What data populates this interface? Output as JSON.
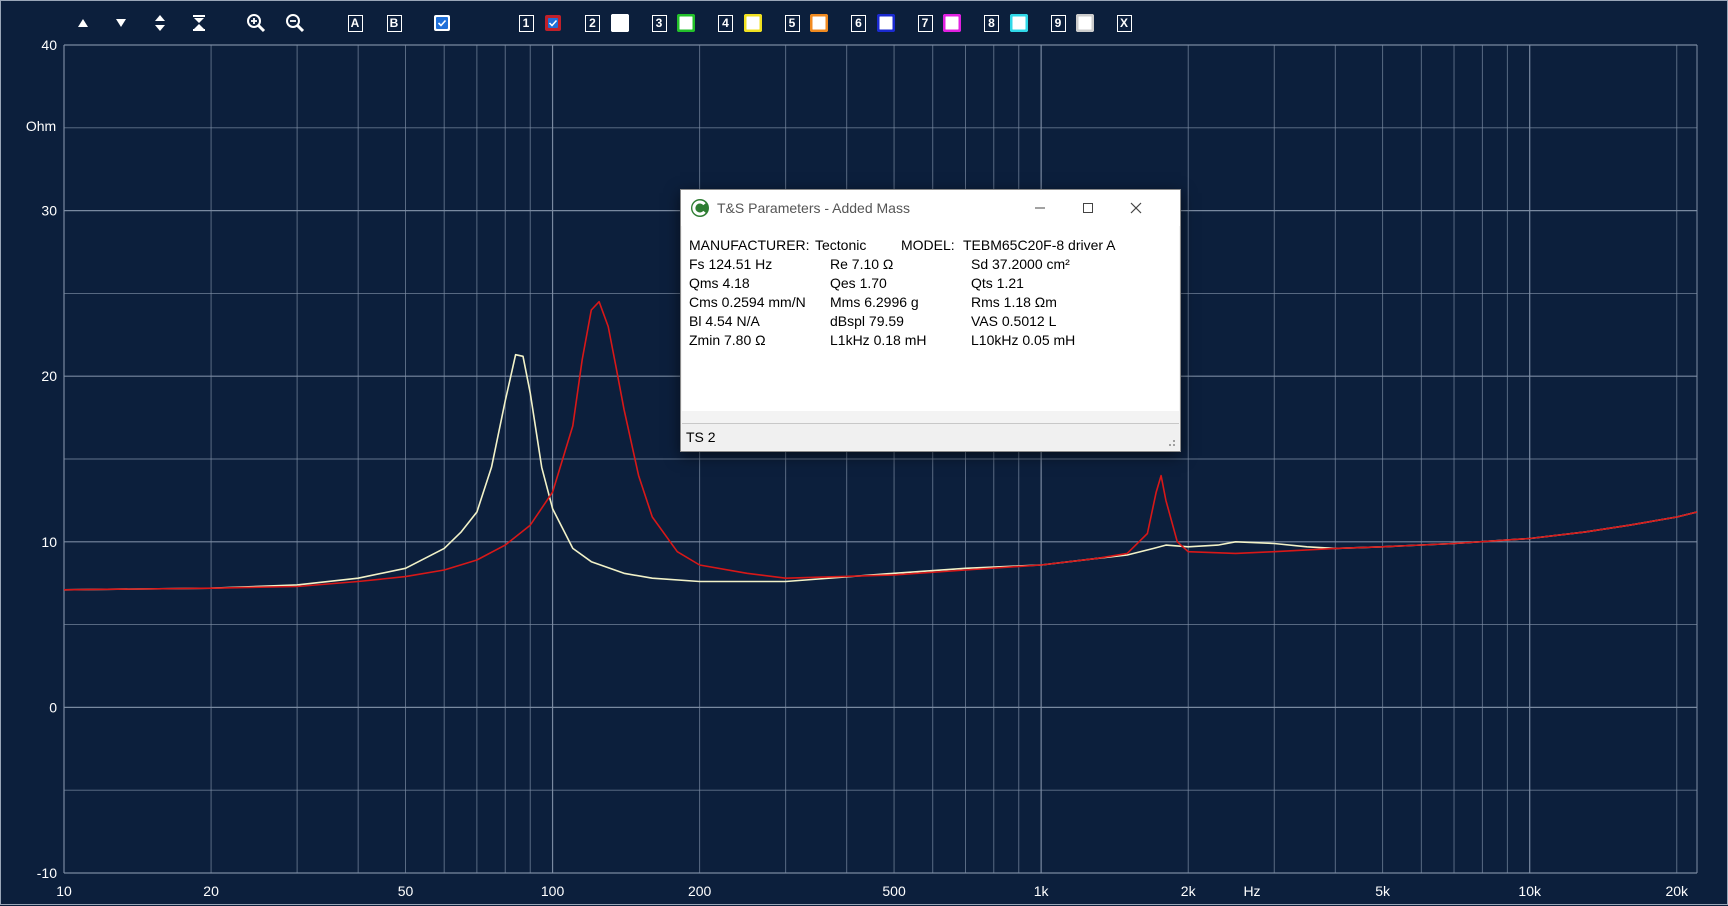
{
  "toolbar": {
    "letter_buttons": [
      "A",
      "B"
    ],
    "trace_numbers": [
      "1",
      "2",
      "3",
      "4",
      "5",
      "6",
      "7",
      "8",
      "9"
    ],
    "trace_colors": [
      "#c0202a",
      "#ffffff",
      "#22c02a",
      "#f0e020",
      "#f08a20",
      "#1a2ad0",
      "#e020e0",
      "#30d8e8",
      "#cccccc"
    ],
    "close_label": "X"
  },
  "dialog": {
    "title": "T&S Parameters - Added Mass",
    "manufacturer_label": "MANUFACTURER:",
    "manufacturer": "Tectonic",
    "model_label": "MODEL:",
    "model": "TEBM65C20F-8 driver A",
    "params": [
      [
        "Fs  124.51 Hz",
        "Re  7.10 Ω",
        "Sd  37.2000 cm²"
      ],
      [
        "Qms 4.18",
        "Qes 1.70",
        "Qts 1.21"
      ],
      [
        "Cms 0.2594 mm/N",
        "Mms 6.2996 g",
        "Rms 1.18 Ωm"
      ],
      [
        "Bl   4.54 N/A",
        "dBspl 79.59",
        "VAS  0.5012 L"
      ],
      [
        "Zmin   7.80 Ω",
        "L1kHz  0.18 mH",
        "L10kHz 0.05 mH"
      ]
    ],
    "status": "TS 2"
  },
  "chart_data": {
    "type": "line",
    "x_scale": "log",
    "xlim": [
      10,
      22000
    ],
    "ylim": [
      -10,
      40
    ],
    "ylabel": "Ohm",
    "xlabel": "Hz",
    "x_tick_labels": [
      {
        "v": 10,
        "t": "10"
      },
      {
        "v": 20,
        "t": "20"
      },
      {
        "v": 50,
        "t": "50"
      },
      {
        "v": 100,
        "t": "100"
      },
      {
        "v": 200,
        "t": "200"
      },
      {
        "v": 500,
        "t": "500"
      },
      {
        "v": 1000,
        "t": "1k"
      },
      {
        "v": 2000,
        "t": "2k"
      },
      {
        "v": 5000,
        "t": "5k"
      },
      {
        "v": 10000,
        "t": "10k"
      },
      {
        "v": 20000,
        "t": "20k"
      }
    ],
    "y_tick_labels": [
      {
        "v": 40,
        "t": "40"
      },
      {
        "v": 30,
        "t": "30"
      },
      {
        "v": 20,
        "t": "20"
      },
      {
        "v": 10,
        "t": "10"
      },
      {
        "v": 0,
        "t": "0"
      },
      {
        "v": -10,
        "t": "-10"
      }
    ],
    "grid": true,
    "colors": {
      "background": "#0c1f3c",
      "grid": "#7f8fa6",
      "text": "#ffffff"
    },
    "series": [
      {
        "color": "#f2f2c8",
        "x": [
          10,
          20,
          30,
          40,
          50,
          60,
          65,
          70,
          75,
          80,
          84,
          87,
          90,
          95,
          100,
          110,
          120,
          140,
          160,
          200,
          300,
          500,
          700,
          1000,
          1300,
          1500,
          1700,
          1800,
          2000,
          2300,
          2500,
          3000,
          3500,
          4000,
          5000,
          7000,
          10000,
          13000,
          16000,
          20000,
          22000
        ],
        "y": [
          7.1,
          7.2,
          7.4,
          7.8,
          8.4,
          9.6,
          10.6,
          11.8,
          14.5,
          18.5,
          21.3,
          21.2,
          19.0,
          14.5,
          12.0,
          9.6,
          8.8,
          8.1,
          7.8,
          7.6,
          7.6,
          8.1,
          8.4,
          8.6,
          9.0,
          9.2,
          9.6,
          9.8,
          9.7,
          9.8,
          10.0,
          9.9,
          9.7,
          9.6,
          9.7,
          9.9,
          10.2,
          10.6,
          11.0,
          11.5,
          11.8
        ]
      },
      {
        "color": "#d81818",
        "x": [
          10,
          20,
          30,
          40,
          50,
          60,
          70,
          80,
          90,
          100,
          110,
          115,
          120,
          124.5,
          130,
          135,
          140,
          150,
          160,
          180,
          200,
          250,
          300,
          500,
          700,
          1000,
          1300,
          1500,
          1650,
          1720,
          1760,
          1800,
          1900,
          2000,
          2500,
          3000,
          4000,
          5000,
          7000,
          10000,
          13000,
          16000,
          20000,
          22000
        ],
        "y": [
          7.1,
          7.2,
          7.3,
          7.6,
          7.9,
          8.3,
          8.9,
          9.8,
          11.0,
          13.0,
          17.0,
          21.0,
          24.0,
          24.5,
          23.0,
          20.5,
          18.0,
          14.0,
          11.5,
          9.4,
          8.6,
          8.1,
          7.8,
          8.0,
          8.3,
          8.6,
          9.0,
          9.3,
          10.5,
          13.0,
          14.0,
          12.5,
          10.0,
          9.4,
          9.3,
          9.4,
          9.6,
          9.7,
          9.9,
          10.2,
          10.6,
          11.0,
          11.5,
          11.8
        ]
      }
    ]
  }
}
